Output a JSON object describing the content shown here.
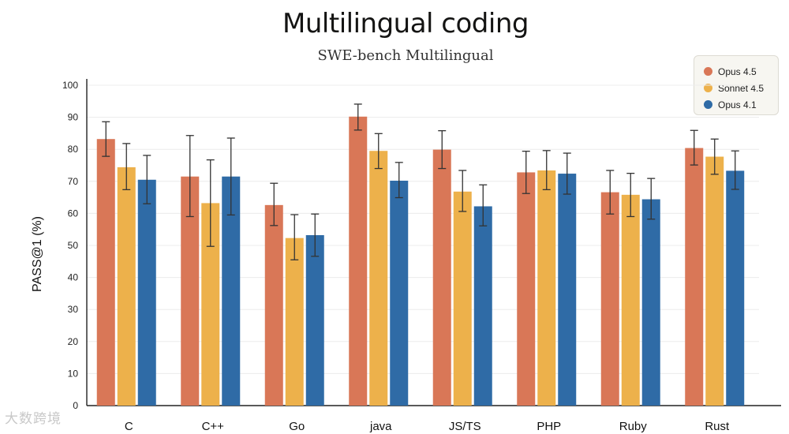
{
  "chart_data": {
    "type": "bar",
    "title": "Multilingual coding",
    "subtitle": "SWE-bench Multilingual",
    "ylabel": "PASS@1 (%)",
    "xlabel": "",
    "ylim": [
      0,
      100
    ],
    "yticks": [
      0,
      10,
      20,
      30,
      40,
      50,
      60,
      70,
      80,
      90,
      100
    ],
    "grid": true,
    "legend_position": "top-right",
    "categories": [
      "C",
      "C++",
      "Go",
      "java",
      "JS/TS",
      "PHP",
      "Ruby",
      "Rust"
    ],
    "series": [
      {
        "name": "Opus 4.5",
        "color": "#d97757",
        "values": [
          83.2,
          71.5,
          62.6,
          90.2,
          79.9,
          72.8,
          66.6,
          80.4
        ],
        "error_low": [
          77.8,
          59.0,
          56.2,
          86.0,
          74.0,
          66.2,
          59.8,
          75.1
        ],
        "error_high": [
          88.6,
          84.3,
          69.4,
          94.1,
          85.8,
          79.4,
          73.4,
          85.9
        ]
      },
      {
        "name": "Sonnet 4.5",
        "color": "#edb14b",
        "values": [
          74.4,
          63.2,
          52.3,
          79.5,
          66.8,
          73.4,
          65.8,
          77.7
        ],
        "error_low": [
          67.4,
          49.7,
          45.5,
          74.0,
          60.6,
          67.4,
          59.0,
          72.2
        ],
        "error_high": [
          81.8,
          76.7,
          59.6,
          84.9,
          73.4,
          79.6,
          72.5,
          83.2
        ]
      },
      {
        "name": "Opus 4.1",
        "color": "#2f6ba6",
        "values": [
          70.5,
          71.5,
          53.2,
          70.2,
          62.2,
          72.4,
          64.4,
          73.3
        ],
        "error_low": [
          63.0,
          59.5,
          46.6,
          64.9,
          56.1,
          66.0,
          58.2,
          67.5
        ],
        "error_high": [
          78.1,
          83.5,
          59.8,
          75.9,
          68.9,
          78.8,
          70.9,
          79.5
        ]
      }
    ]
  },
  "watermark": "大数跨境"
}
